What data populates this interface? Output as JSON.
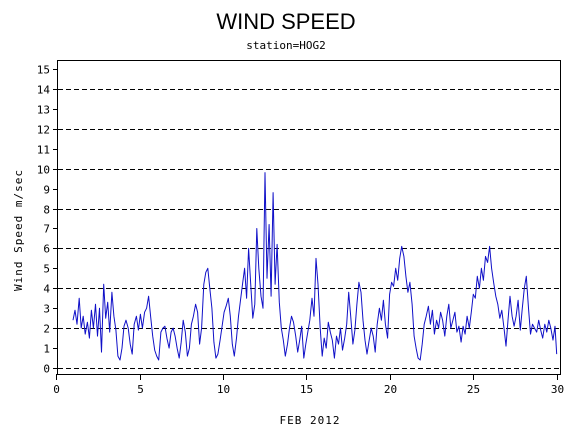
{
  "chart_data": {
    "type": "line",
    "title": "WIND SPEED",
    "subtitle": "station=HOG2",
    "xlabel": "FEB 2012",
    "ylabel": "Wind Speed m/sec",
    "xlim": [
      0.1,
      30.2
    ],
    "ylim": [
      -0.3,
      15.4
    ],
    "x_ticks": [
      0,
      5,
      10,
      15,
      20,
      25,
      30
    ],
    "y_ticks": [
      0,
      1,
      2,
      3,
      4,
      5,
      6,
      7,
      8,
      9,
      10,
      11,
      12,
      13,
      14,
      15
    ],
    "reference_lines": [
      0,
      2,
      4,
      6,
      8,
      10,
      12,
      14
    ],
    "grid": "dashed horizontal reference lines",
    "line_color": "#1010c8",
    "series": [
      {
        "x": [
          1.0,
          1.12,
          1.24,
          1.37,
          1.49,
          1.61,
          1.73,
          1.86,
          1.98,
          2.1,
          2.22,
          2.35,
          2.47,
          2.59,
          2.71,
          2.84,
          2.96,
          3.08,
          3.2,
          3.33,
          3.45,
          3.57,
          3.69,
          3.82,
          3.94,
          4.06,
          4.18,
          4.31,
          4.43,
          4.55,
          4.67,
          4.8,
          4.92,
          5.04,
          5.16,
          5.29,
          5.41,
          5.53,
          5.65,
          5.78,
          5.9,
          6.02,
          6.14,
          6.27,
          6.39,
          6.51,
          6.63,
          6.76,
          6.88,
          7.0,
          7.12,
          7.24,
          7.37,
          7.49,
          7.61,
          7.73,
          7.86,
          7.98,
          8.1,
          8.22,
          8.35,
          8.47,
          8.59,
          8.71,
          8.84,
          8.96,
          9.08,
          9.2,
          9.33,
          9.45,
          9.57,
          9.69,
          9.82,
          9.94,
          10.06,
          10.18,
          10.31,
          10.43,
          10.55,
          10.67,
          10.8,
          10.92,
          11.04,
          11.16,
          11.29,
          11.41,
          11.53,
          11.65,
          11.78,
          11.9,
          12.02,
          12.14,
          12.27,
          12.39,
          12.51,
          12.63,
          12.76,
          12.88,
          13.0,
          13.12,
          13.24,
          13.37,
          13.49,
          13.61,
          13.73,
          13.86,
          13.98,
          14.1,
          14.22,
          14.35,
          14.47,
          14.59,
          14.71,
          14.84,
          14.96,
          15.08,
          15.2,
          15.33,
          15.45,
          15.57,
          15.69,
          15.82,
          15.94,
          16.06,
          16.18,
          16.31,
          16.43,
          16.55,
          16.67,
          16.8,
          16.92,
          17.04,
          17.16,
          17.29,
          17.41,
          17.53,
          17.65,
          17.78,
          17.9,
          18.02,
          18.14,
          18.27,
          18.39,
          18.51,
          18.63,
          18.76,
          18.88,
          19.0,
          19.12,
          19.24,
          19.37,
          19.49,
          19.61,
          19.73,
          19.86,
          19.98,
          20.1,
          20.22,
          20.35,
          20.47,
          20.59,
          20.71,
          20.84,
          20.96,
          21.08,
          21.2,
          21.33,
          21.45,
          21.57,
          21.69,
          21.82,
          21.94,
          22.06,
          22.18,
          22.31,
          22.43,
          22.55,
          22.67,
          22.8,
          22.92,
          23.04,
          23.16,
          23.29,
          23.41,
          23.53,
          23.65,
          23.78,
          23.9,
          24.02,
          24.14,
          24.27,
          24.39,
          24.51,
          24.63,
          24.76,
          24.88,
          25.0,
          25.12,
          25.24,
          25.37,
          25.49,
          25.61,
          25.73,
          25.86,
          25.98,
          26.1,
          26.22,
          26.35,
          26.47,
          26.59,
          26.71,
          26.84,
          26.96,
          27.08,
          27.2,
          27.33,
          27.45,
          27.57,
          27.69,
          27.82,
          27.94,
          28.06,
          28.18,
          28.31,
          28.43,
          28.55,
          28.67,
          28.8,
          28.92,
          29.04,
          29.16,
          29.29,
          29.41,
          29.53,
          29.65,
          29.78,
          29.9,
          30.0
        ],
        "values": [
          2.4,
          2.9,
          2.2,
          3.5,
          2.0,
          2.6,
          1.7,
          2.3,
          1.5,
          2.9,
          2.0,
          3.2,
          1.6,
          3.0,
          0.8,
          4.2,
          2.5,
          3.3,
          1.8,
          3.8,
          2.6,
          1.9,
          0.6,
          0.4,
          1.0,
          2.1,
          2.4,
          2.0,
          1.2,
          0.7,
          2.2,
          2.6,
          1.9,
          2.7,
          2.0,
          2.8,
          3.0,
          3.6,
          2.6,
          1.6,
          0.9,
          0.6,
          0.4,
          1.8,
          2.0,
          2.1,
          1.5,
          1.0,
          1.8,
          2.0,
          1.6,
          1.0,
          0.5,
          1.3,
          2.4,
          1.8,
          0.6,
          1.0,
          2.2,
          2.6,
          3.2,
          2.8,
          1.2,
          2.0,
          4.2,
          4.8,
          5.0,
          4.0,
          3.0,
          1.3,
          0.5,
          0.7,
          1.4,
          2.1,
          2.8,
          3.1,
          3.5,
          2.6,
          1.2,
          0.6,
          1.5,
          2.6,
          3.4,
          4.2,
          5.0,
          3.5,
          6.0,
          4.3,
          2.5,
          3.2,
          7.0,
          5.0,
          3.6,
          3.0,
          9.8,
          4.5,
          7.2,
          3.6,
          8.8,
          4.2,
          6.2,
          3.3,
          2.0,
          1.4,
          0.6,
          1.2,
          2.0,
          2.6,
          2.3,
          1.6,
          0.8,
          1.4,
          2.1,
          0.5,
          1.2,
          1.8,
          2.4,
          3.5,
          2.6,
          5.5,
          4.2,
          2.0,
          0.6,
          1.5,
          1.0,
          2.3,
          1.8,
          1.4,
          0.5,
          1.6,
          1.2,
          2.0,
          0.9,
          1.5,
          2.2,
          3.8,
          2.6,
          1.2,
          1.9,
          3.2,
          4.3,
          3.8,
          2.4,
          1.4,
          0.7,
          1.4,
          2.0,
          1.6,
          0.8,
          2.2,
          3.0,
          2.4,
          3.4,
          2.2,
          1.5,
          3.7,
          4.3,
          4.1,
          5.0,
          4.4,
          5.5,
          6.1,
          5.6,
          4.6,
          3.8,
          4.3,
          3.2,
          1.6,
          1.0,
          0.5,
          0.4,
          1.2,
          2.2,
          2.6,
          3.1,
          2.2,
          2.9,
          1.7,
          2.4,
          2.0,
          2.8,
          2.4,
          1.6,
          2.6,
          3.2,
          2.0,
          2.4,
          2.8,
          1.8,
          2.1,
          1.3,
          2.1,
          1.7,
          2.6,
          2.0,
          2.8,
          3.7,
          3.5,
          4.6,
          4.0,
          5.0,
          4.4,
          5.6,
          5.3,
          6.1,
          5.0,
          4.3,
          3.6,
          3.2,
          2.5,
          2.9,
          2.0,
          1.1,
          2.4,
          3.6,
          2.6,
          2.1,
          2.6,
          3.4,
          1.9,
          3.0,
          4.0,
          4.6,
          3.0,
          1.7,
          2.2,
          2.0,
          1.8,
          2.4,
          1.9,
          1.5,
          2.2,
          1.8,
          2.4,
          2.0,
          1.4,
          2.1,
          0.7
        ]
      }
    ]
  }
}
